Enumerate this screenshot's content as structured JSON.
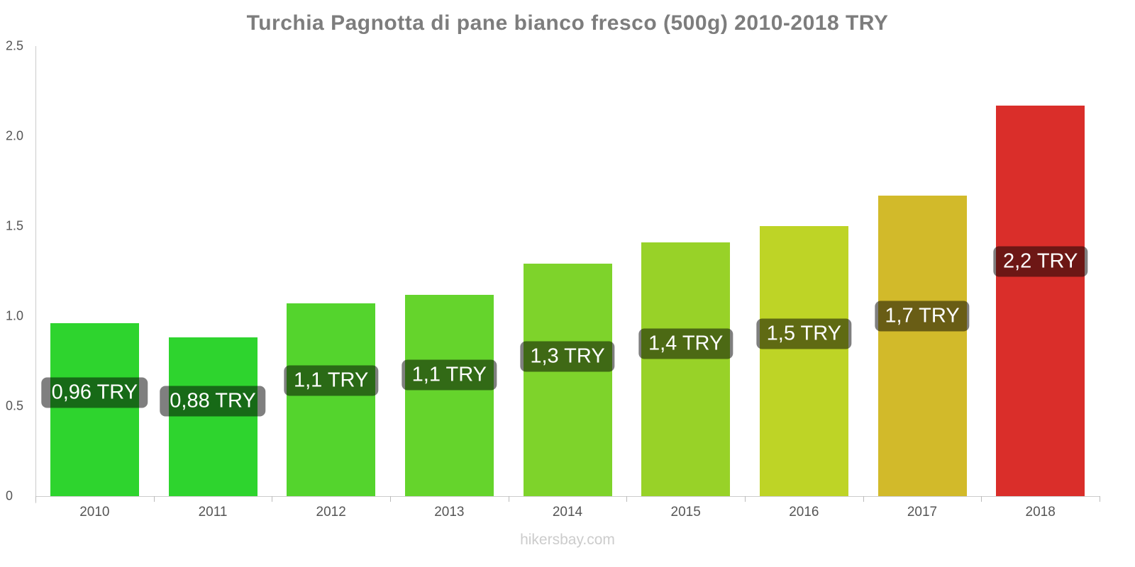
{
  "title": "Turchia Pagnotta di pane bianco fresco (500g) 2010-2018 TRY",
  "footer": "hikersbay.com",
  "chart_data": {
    "type": "bar",
    "title": "Turchia Pagnotta di pane bianco fresco (500g) 2010-2018 TRY",
    "categories": [
      "2010",
      "2011",
      "2012",
      "2013",
      "2014",
      "2015",
      "2016",
      "2017",
      "2018"
    ],
    "values": [
      0.96,
      0.88,
      1.07,
      1.12,
      1.29,
      1.41,
      1.5,
      1.67,
      2.17
    ],
    "bar_labels": [
      "0,96 TRY",
      "0,88 TRY",
      "1,1 TRY",
      "1,1 TRY",
      "1,3 TRY",
      "1,4 TRY",
      "1,5 TRY",
      "1,7 TRY",
      "2,2 TRY"
    ],
    "bar_colors": [
      "#2ed42e",
      "#2ed42e",
      "#54d42d",
      "#65d42c",
      "#7ed32b",
      "#98d228",
      "#bed426",
      "#d2ba2a",
      "#da2e2a"
    ],
    "label_bg": "rgba(0,0,0,0.5)",
    "xlabel": "",
    "ylabel": "",
    "ylim": [
      0,
      2.5
    ],
    "yticks": [
      0,
      0.5,
      1.0,
      1.5,
      2.0,
      2.5
    ],
    "ytick_labels": [
      "0",
      "0.5",
      "1.0",
      "1.5",
      "2.0",
      "2.5"
    ],
    "grid": "off",
    "legend": "none",
    "title_color": "#7d7d7d",
    "axis_text_color": "#555555"
  }
}
